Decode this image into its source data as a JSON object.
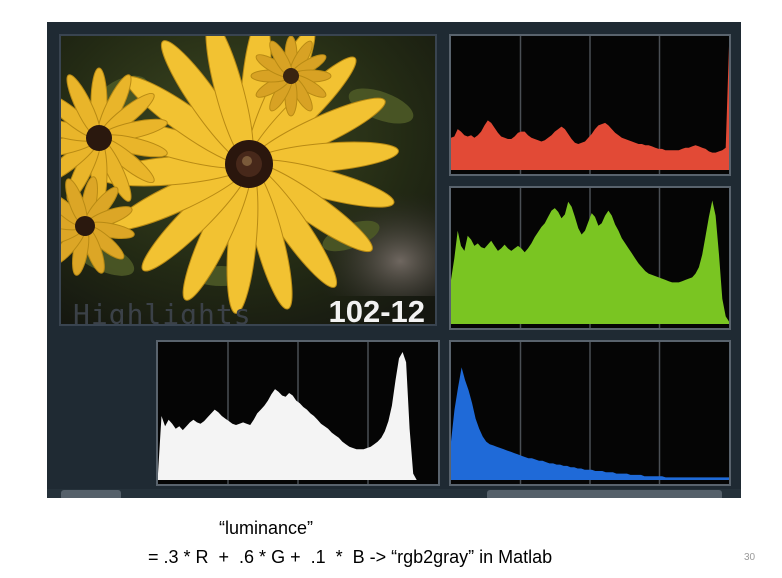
{
  "screen": {
    "mode_label": "Highlights",
    "frame_number": "102-12",
    "histograms": [
      {
        "name": "red",
        "color": "#e24a36",
        "values": [
          0.26,
          0.27,
          0.33,
          0.31,
          0.28,
          0.27,
          0.28,
          0.26,
          0.28,
          0.31,
          0.36,
          0.4,
          0.38,
          0.34,
          0.3,
          0.27,
          0.26,
          0.25,
          0.25,
          0.27,
          0.3,
          0.31,
          0.31,
          0.28,
          0.26,
          0.25,
          0.24,
          0.23,
          0.24,
          0.26,
          0.28,
          0.31,
          0.33,
          0.35,
          0.33,
          0.29,
          0.25,
          0.22,
          0.21,
          0.22,
          0.23,
          0.26,
          0.29,
          0.33,
          0.36,
          0.37,
          0.38,
          0.36,
          0.33,
          0.3,
          0.28,
          0.26,
          0.25,
          0.24,
          0.23,
          0.22,
          0.21,
          0.21,
          0.2,
          0.2,
          0.19,
          0.18,
          0.17,
          0.17,
          0.16,
          0.16,
          0.16,
          0.16,
          0.16,
          0.17,
          0.18,
          0.18,
          0.19,
          0.2,
          0.19,
          0.18,
          0.17,
          0.15,
          0.14,
          0.14,
          0.15,
          0.16,
          0.18,
          1.0
        ]
      },
      {
        "name": "green",
        "color": "#7ac522",
        "values": [
          0.35,
          0.52,
          0.74,
          0.62,
          0.58,
          0.7,
          0.67,
          0.62,
          0.64,
          0.61,
          0.6,
          0.63,
          0.66,
          0.62,
          0.58,
          0.6,
          0.63,
          0.6,
          0.58,
          0.6,
          0.62,
          0.6,
          0.57,
          0.6,
          0.64,
          0.69,
          0.73,
          0.77,
          0.8,
          0.85,
          0.9,
          0.92,
          0.89,
          0.84,
          0.87,
          0.97,
          0.93,
          0.85,
          0.76,
          0.71,
          0.74,
          0.81,
          0.88,
          0.85,
          0.78,
          0.8,
          0.86,
          0.9,
          0.86,
          0.79,
          0.74,
          0.68,
          0.64,
          0.6,
          0.56,
          0.52,
          0.48,
          0.45,
          0.42,
          0.4,
          0.39,
          0.38,
          0.37,
          0.36,
          0.35,
          0.34,
          0.33,
          0.33,
          0.33,
          0.34,
          0.35,
          0.36,
          0.37,
          0.4,
          0.45,
          0.55,
          0.7,
          0.85,
          0.98,
          0.86,
          0.55,
          0.2,
          0.06,
          0.02
        ]
      },
      {
        "name": "luminance",
        "color": "#f4f4f4",
        "values": [
          0.05,
          0.5,
          0.42,
          0.47,
          0.44,
          0.4,
          0.42,
          0.39,
          0.42,
          0.45,
          0.47,
          0.45,
          0.44,
          0.46,
          0.49,
          0.52,
          0.55,
          0.53,
          0.5,
          0.48,
          0.46,
          0.44,
          0.43,
          0.44,
          0.45,
          0.44,
          0.43,
          0.47,
          0.52,
          0.55,
          0.58,
          0.62,
          0.67,
          0.71,
          0.69,
          0.66,
          0.65,
          0.68,
          0.66,
          0.62,
          0.6,
          0.57,
          0.55,
          0.52,
          0.5,
          0.47,
          0.44,
          0.42,
          0.4,
          0.37,
          0.35,
          0.33,
          0.3,
          0.28,
          0.26,
          0.25,
          0.24,
          0.24,
          0.24,
          0.25,
          0.26,
          0.28,
          0.3,
          0.33,
          0.38,
          0.46,
          0.58,
          0.78,
          0.95,
          1.0,
          0.92,
          0.4,
          0.05,
          0.0,
          0.0,
          0.0,
          0.0,
          0.0,
          0.0,
          0.0
        ]
      },
      {
        "name": "blue",
        "color": "#1f6ad8",
        "values": [
          0.3,
          0.55,
          0.72,
          0.88,
          0.78,
          0.7,
          0.6,
          0.48,
          0.4,
          0.34,
          0.3,
          0.28,
          0.27,
          0.26,
          0.25,
          0.24,
          0.23,
          0.22,
          0.21,
          0.2,
          0.19,
          0.18,
          0.17,
          0.17,
          0.16,
          0.15,
          0.15,
          0.14,
          0.13,
          0.13,
          0.12,
          0.12,
          0.11,
          0.11,
          0.1,
          0.1,
          0.09,
          0.09,
          0.08,
          0.08,
          0.08,
          0.07,
          0.07,
          0.07,
          0.06,
          0.06,
          0.06,
          0.05,
          0.05,
          0.05,
          0.05,
          0.04,
          0.04,
          0.04,
          0.04,
          0.03,
          0.03,
          0.03,
          0.03,
          0.03,
          0.03,
          0.02,
          0.02,
          0.02,
          0.02,
          0.02,
          0.02,
          0.02,
          0.02,
          0.02,
          0.02,
          0.02,
          0.02,
          0.02,
          0.02,
          0.02,
          0.02,
          0.02,
          0.02,
          0.02
        ]
      }
    ]
  },
  "caption": {
    "line1": "“luminance”",
    "line2": "= .3 * R  +  .6 * G +  .1  *  B -> “rgb2gray” in Matlab"
  },
  "page_number": "30"
}
